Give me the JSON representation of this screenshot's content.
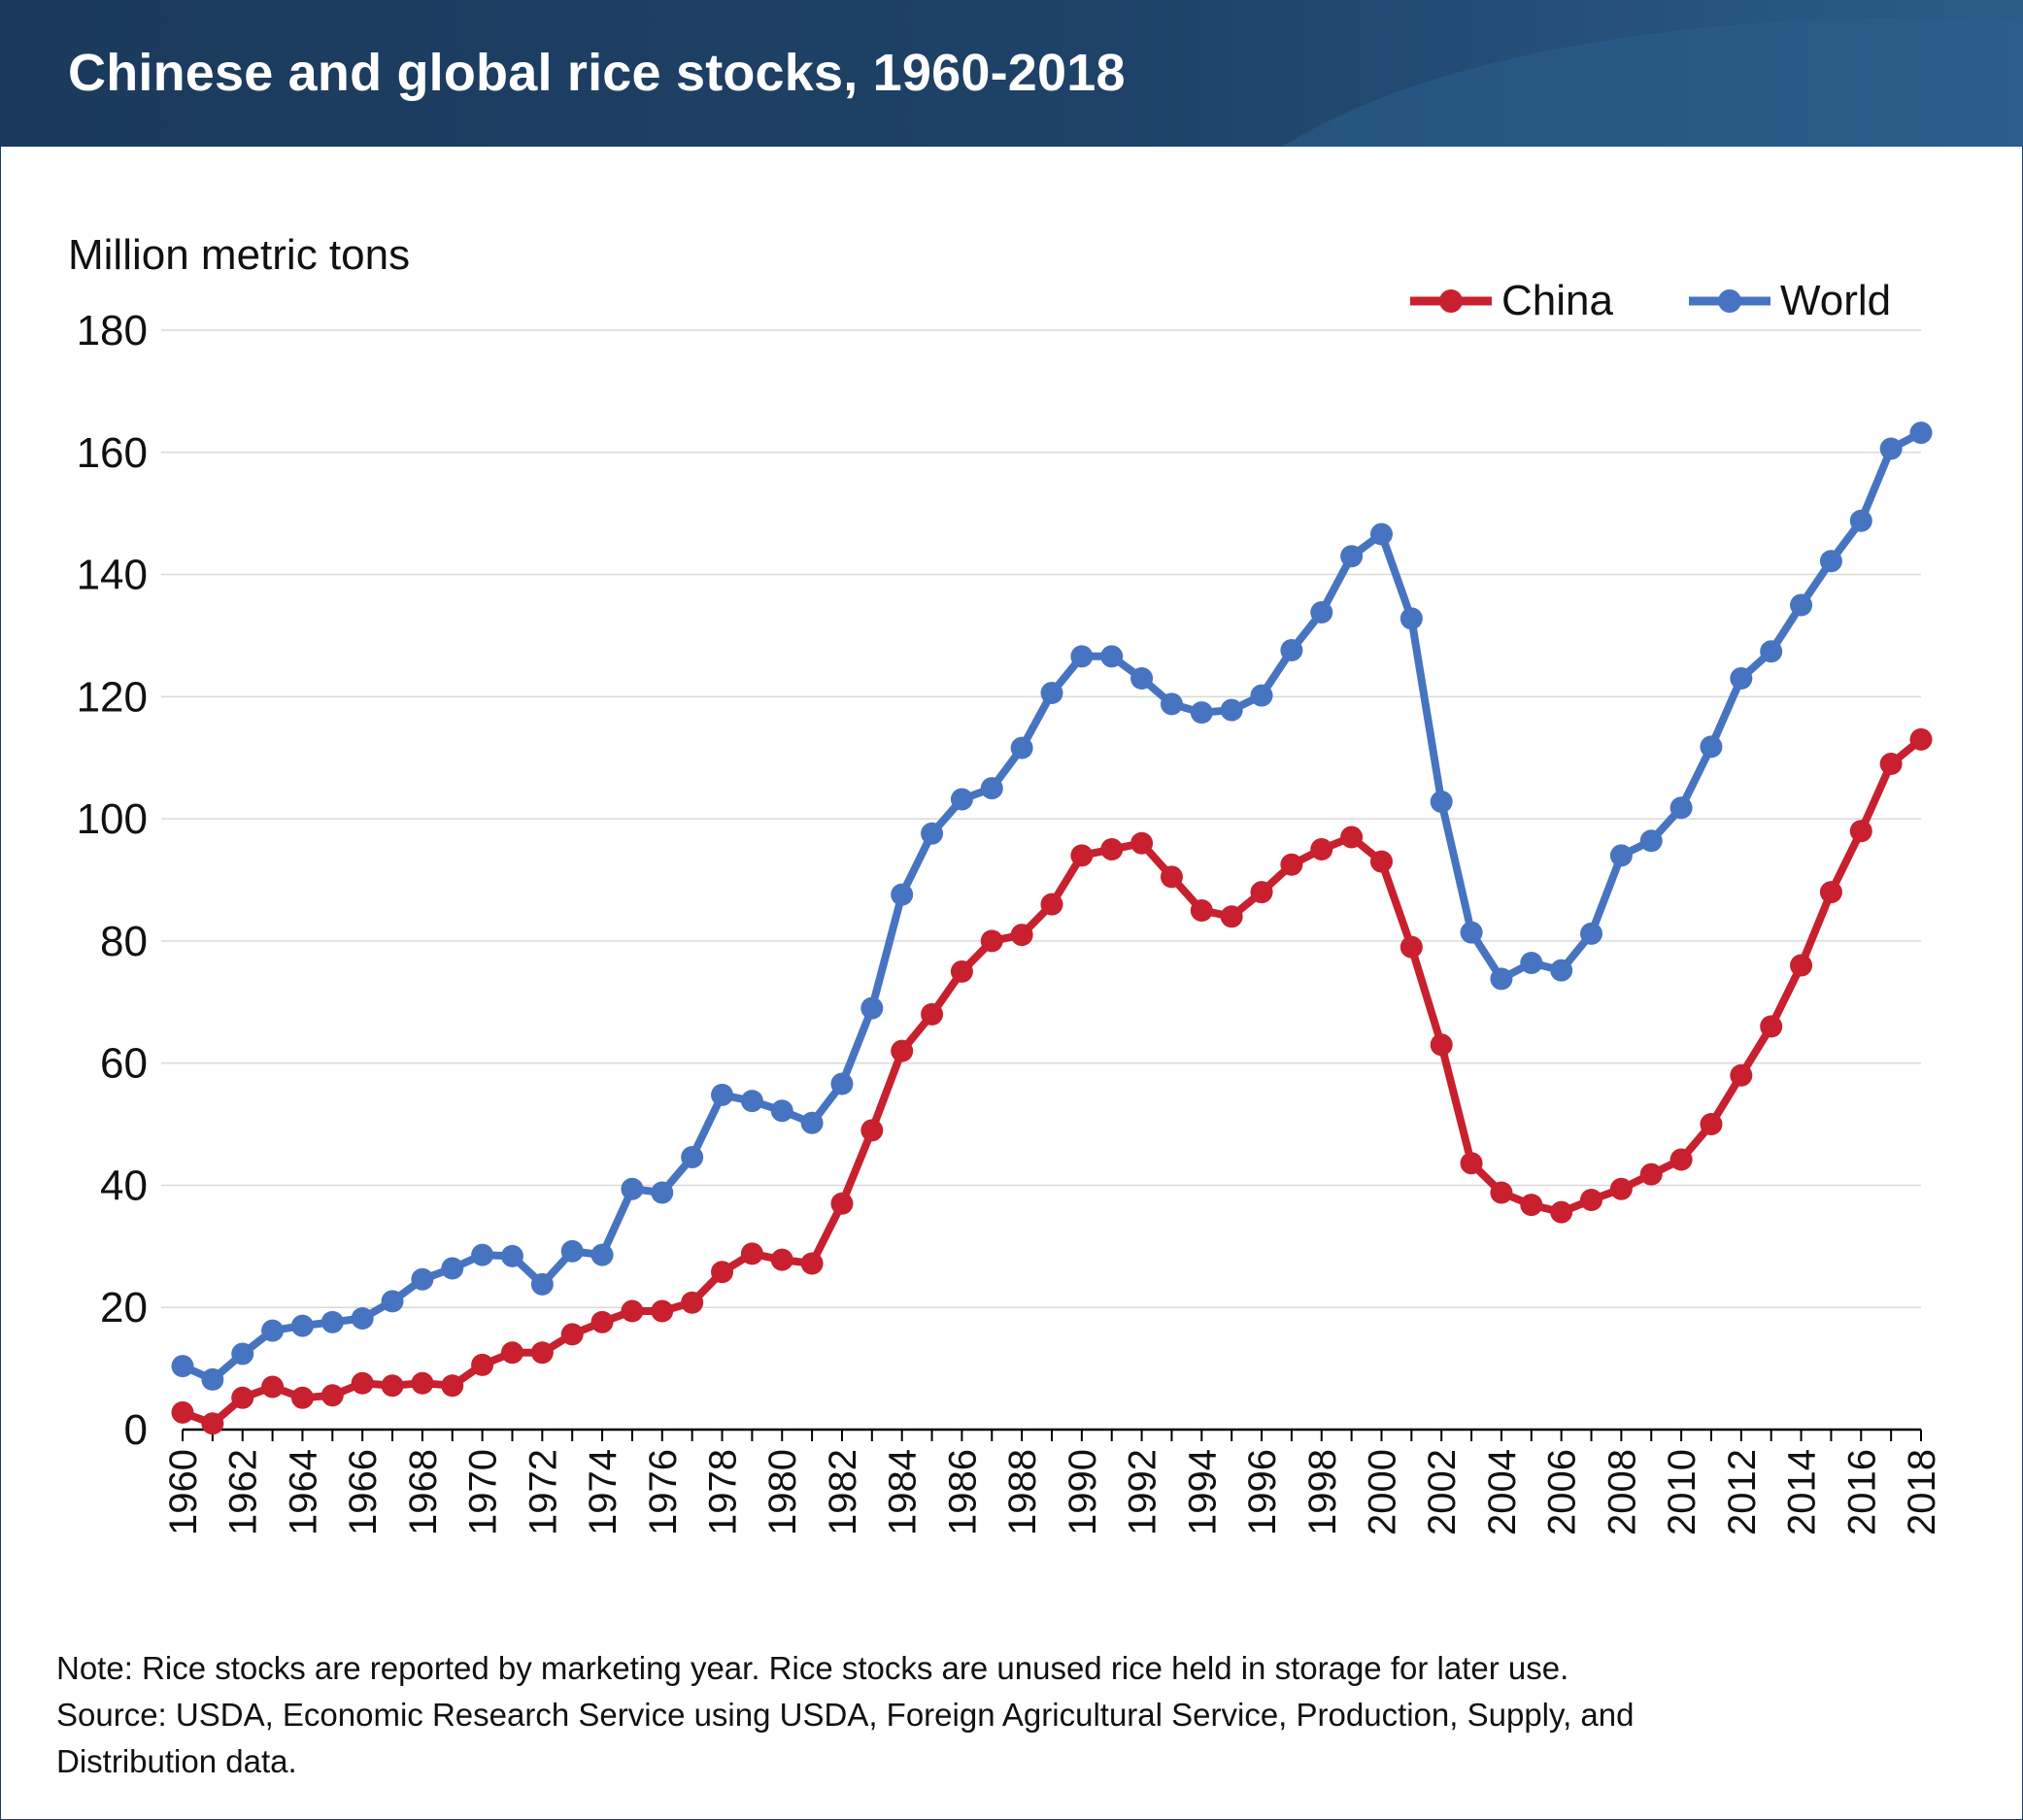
{
  "header": {
    "title": "Chinese and global rice stocks, 1960-2018"
  },
  "colors": {
    "header_bg": "#1e4268",
    "china": "#c8202e",
    "world": "#4774c1",
    "grid": "#d9d9d9"
  },
  "chart_data": {
    "type": "line",
    "title": "Chinese and global rice stocks, 1960-2018",
    "ylabel": "Million metric tons",
    "xlabel": "",
    "ylim": [
      0,
      180
    ],
    "yticks": [
      0,
      20,
      40,
      60,
      80,
      100,
      120,
      140,
      160,
      180
    ],
    "xticks": [
      1960,
      1962,
      1964,
      1966,
      1968,
      1970,
      1972,
      1974,
      1976,
      1978,
      1980,
      1982,
      1984,
      1986,
      1988,
      1990,
      1992,
      1994,
      1996,
      1998,
      2000,
      2002,
      2004,
      2006,
      2008,
      2010,
      2012,
      2014,
      2016,
      2018
    ],
    "grid": "horizontal",
    "legend_position": "top-right",
    "x": [
      1960,
      1961,
      1962,
      1963,
      1964,
      1965,
      1966,
      1967,
      1968,
      1969,
      1970,
      1971,
      1972,
      1973,
      1974,
      1975,
      1976,
      1977,
      1978,
      1979,
      1980,
      1981,
      1982,
      1983,
      1984,
      1985,
      1986,
      1987,
      1988,
      1989,
      1990,
      1991,
      1992,
      1993,
      1994,
      1995,
      1996,
      1997,
      1998,
      1999,
      2000,
      2001,
      2002,
      2003,
      2004,
      2005,
      2006,
      2007,
      2008,
      2009,
      2010,
      2011,
      2012,
      2013,
      2014,
      2015,
      2016,
      2017,
      2018
    ],
    "series": [
      {
        "name": "China",
        "color": "#c8202e",
        "values": [
          2.8,
          1,
          5.2,
          7,
          5.2,
          5.6,
          7.6,
          7.2,
          7.6,
          7.2,
          10.6,
          12.6,
          12.6,
          15.6,
          17.6,
          19.4,
          19.4,
          20.8,
          25.8,
          28.8,
          27.8,
          27.2,
          37,
          49,
          62,
          68,
          75,
          80,
          81,
          86,
          94,
          95,
          96,
          90.5,
          85,
          84,
          88,
          92.5,
          95,
          97,
          93,
          79,
          63,
          43.6,
          38.8,
          36.8,
          35.6,
          37.6,
          39.4,
          41.8,
          44.2,
          50,
          58,
          66,
          76,
          88,
          98,
          109,
          113
        ]
      },
      {
        "name": "World",
        "color": "#4774c1",
        "values": [
          10.4,
          8.2,
          12.4,
          16.2,
          17,
          17.6,
          18.2,
          21,
          24.6,
          26.4,
          28.6,
          28.4,
          23.8,
          29.2,
          28.6,
          39.4,
          38.8,
          44.6,
          54.8,
          53.8,
          52.2,
          50.2,
          56.6,
          69,
          87.6,
          97.6,
          103.2,
          105,
          111.6,
          120.6,
          126.6,
          126.6,
          123,
          118.8,
          117.4,
          117.8,
          120.2,
          127.6,
          133.8,
          143,
          146.6,
          132.8,
          102.8,
          81.4,
          73.8,
          76.4,
          75.2,
          81.2,
          94,
          96.4,
          101.8,
          111.8,
          123,
          127.4,
          135,
          142.2,
          148.8,
          160.6,
          163.2
        ]
      }
    ]
  },
  "notes": {
    "line1": "Note: Rice stocks are reported by marketing year. Rice stocks are unused rice held in storage for later use.",
    "line2": "Source: USDA, Economic Research Service using USDA, Foreign Agricultural Service, Production, Supply, and",
    "line3": "Distribution data."
  }
}
